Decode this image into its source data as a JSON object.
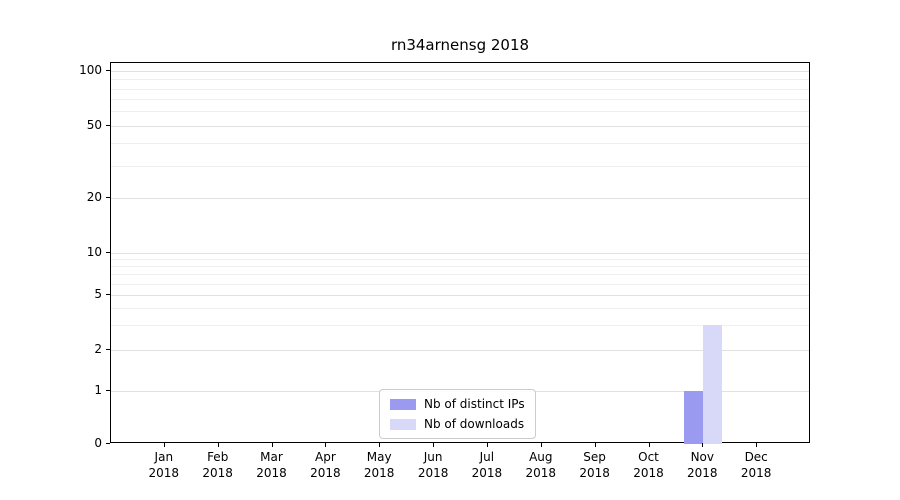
{
  "chart_data": {
    "type": "bar",
    "title": "rn34arnensg 2018",
    "categories": [
      "Jan",
      "Feb",
      "Mar",
      "Apr",
      "May",
      "Jun",
      "Jul",
      "Aug",
      "Sep",
      "Oct",
      "Nov",
      "Dec"
    ],
    "x_year_label": "2018",
    "series": [
      {
        "name": "Nb of distinct IPs",
        "color": "#9a9af0",
        "values": [
          0,
          0,
          0,
          0,
          0,
          0,
          0,
          0,
          0,
          0,
          1,
          0
        ]
      },
      {
        "name": "Nb of downloads",
        "color": "#d8d8f8",
        "values": [
          0,
          0,
          0,
          0,
          0,
          0,
          0,
          0,
          0,
          0,
          3,
          0
        ]
      }
    ],
    "y_ticks": [
      0,
      1,
      2,
      5,
      10,
      20,
      50,
      100
    ],
    "y_minor_gridlines": [
      3,
      4,
      6,
      7,
      8,
      9,
      30,
      40,
      60,
      70,
      80,
      90
    ],
    "ylim": [
      0,
      115
    ],
    "scale": "symlog",
    "grid": true,
    "legend_position": "lower center"
  }
}
